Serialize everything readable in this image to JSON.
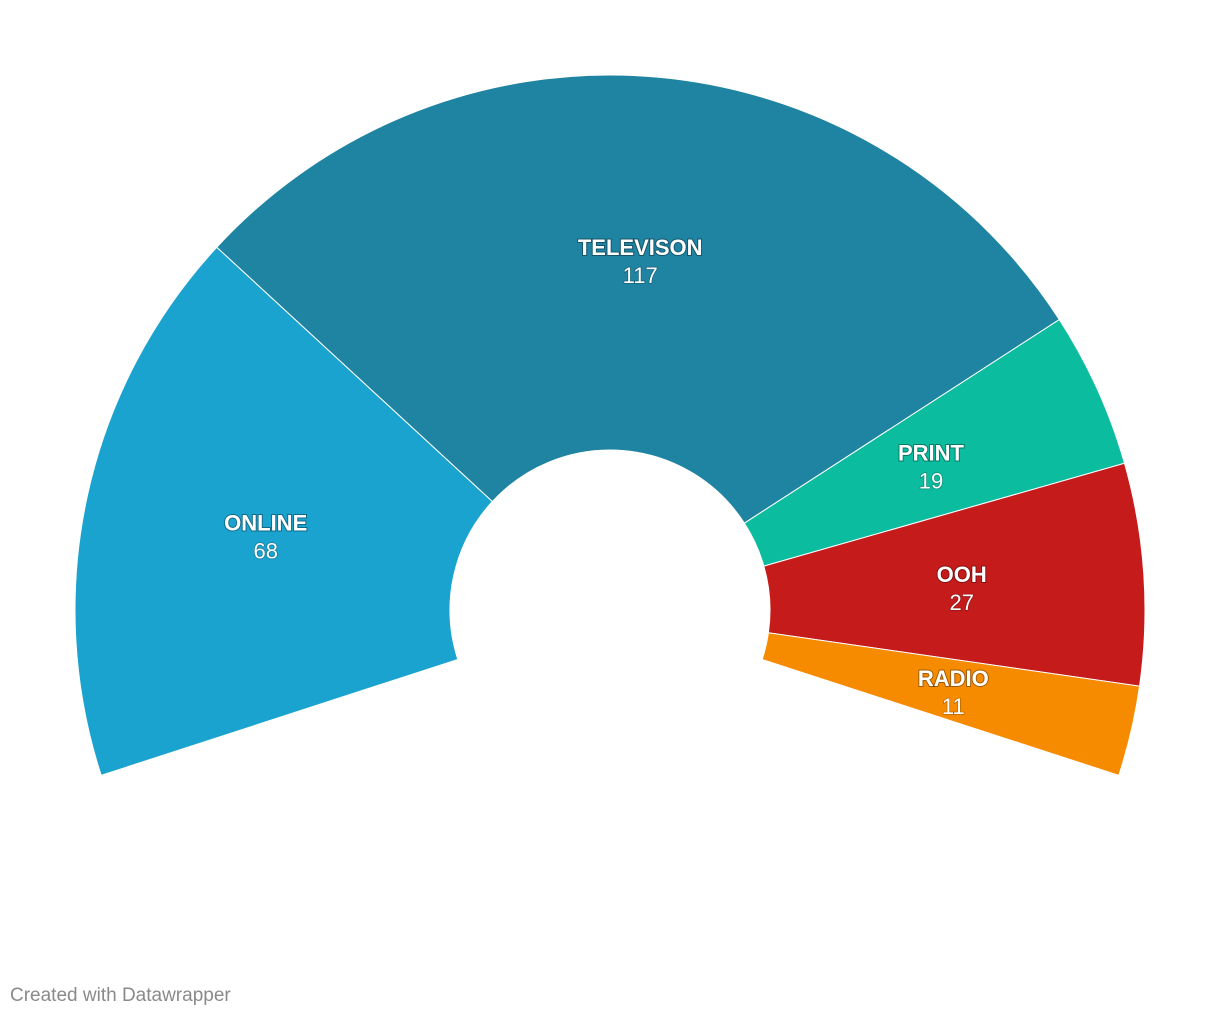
{
  "chart_data": {
    "type": "pie",
    "subtype": "semi-donut",
    "total_angle_degrees": 216,
    "slices": [
      {
        "label": "ONLINE",
        "value": 68,
        "color": "#1aa3cf"
      },
      {
        "label": "TELEVISON",
        "value": 117,
        "color": "#1f83a2"
      },
      {
        "label": "PRINT",
        "value": 19,
        "color": "#0bbc9f"
      },
      {
        "label": "OOH",
        "value": 27,
        "color": "#c51b1b"
      },
      {
        "label": "RADIO",
        "value": 11,
        "color": "#f78b00"
      }
    ]
  },
  "footer": {
    "credit": "Created with Datawrapper"
  }
}
